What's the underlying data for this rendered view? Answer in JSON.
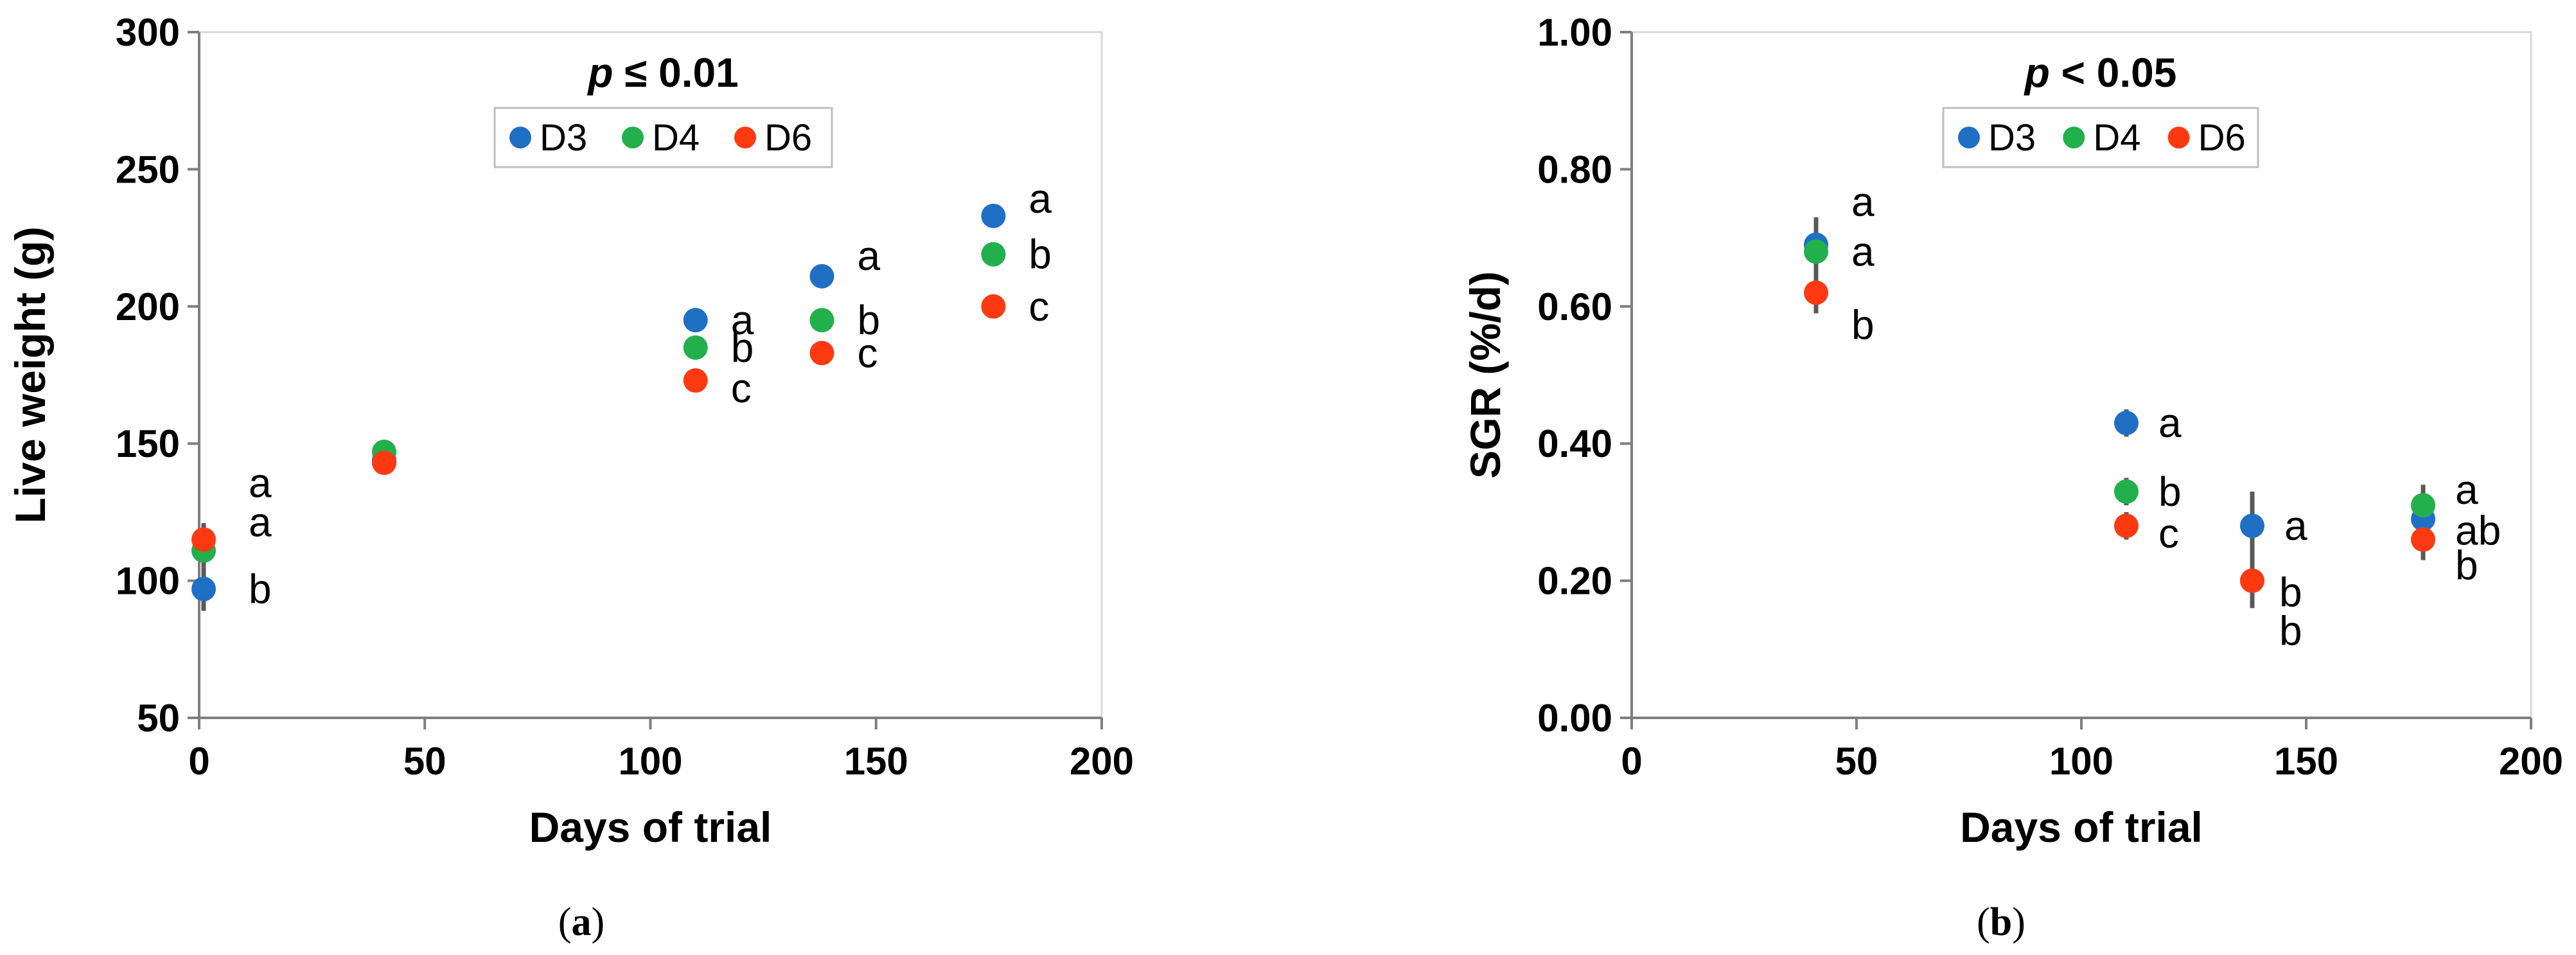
{
  "chart_data": [
    {
      "type": "scatter",
      "panel": "a",
      "caption_letter": "a",
      "p_label": "p ≤ 0.01",
      "p_symbol": "p",
      "p_rest": " ≤ 0.01",
      "xlabel": "Days of trial",
      "ylabel": "Live weight (g)",
      "xlim": [
        0,
        200
      ],
      "ylim": [
        50,
        300
      ],
      "xticks": [
        0,
        50,
        100,
        150,
        200
      ],
      "yticks": [
        50,
        100,
        150,
        200,
        250,
        300
      ],
      "legend_placement": "top-center",
      "grid": false,
      "series": [
        {
          "name": "D3",
          "color": "#1F6FC5",
          "points": [
            {
              "x": 1,
              "y": 97,
              "err": 8,
              "label": "b"
            },
            {
              "x": 41,
              "y": 144,
              "err": 0,
              "label": ""
            },
            {
              "x": 110,
              "y": 195,
              "err": 0,
              "label": "a"
            },
            {
              "x": 138,
              "y": 211,
              "err": 0,
              "label": "a"
            },
            {
              "x": 176,
              "y": 233,
              "err": 4,
              "label": "a"
            }
          ]
        },
        {
          "name": "D4",
          "color": "#21B04B",
          "points": [
            {
              "x": 1,
              "y": 111,
              "err": 6,
              "label": "a"
            },
            {
              "x": 41,
              "y": 147,
              "err": 0,
              "label": ""
            },
            {
              "x": 110,
              "y": 185,
              "err": 0,
              "label": "b"
            },
            {
              "x": 138,
              "y": 195,
              "err": 0,
              "label": "b"
            },
            {
              "x": 176,
              "y": 219,
              "err": 4,
              "label": "b"
            }
          ]
        },
        {
          "name": "D6",
          "color": "#FF3A12",
          "points": [
            {
              "x": 1,
              "y": 115,
              "err": 6,
              "label": "a"
            },
            {
              "x": 41,
              "y": 143,
              "err": 0,
              "label": ""
            },
            {
              "x": 110,
              "y": 173,
              "err": 0,
              "label": "c"
            },
            {
              "x": 138,
              "y": 183,
              "err": 0,
              "label": "c"
            },
            {
              "x": 176,
              "y": 200,
              "err": 0,
              "label": "c"
            }
          ]
        }
      ]
    },
    {
      "type": "scatter",
      "panel": "b",
      "caption_letter": "b",
      "p_label": "p < 0.05",
      "p_symbol": "p",
      "p_rest": " < 0.05",
      "xlabel": "Days of trial",
      "ylabel": "SGR (%/d)",
      "xlim": [
        0,
        200
      ],
      "ylim": [
        0,
        1
      ],
      "xticks": [
        0,
        50,
        100,
        150,
        200
      ],
      "yticks": [
        "0.00",
        "0.20",
        "0.40",
        "0.60",
        "0.80",
        "1.00"
      ],
      "legend_placement": "top-center",
      "grid": false,
      "series": [
        {
          "name": "D3",
          "color": "#1F6FC5",
          "points": [
            {
              "x": 41,
              "y": 0.69,
              "err": 0.04,
              "label": "a"
            },
            {
              "x": 110,
              "y": 0.43,
              "err": 0.02,
              "label": "a"
            },
            {
              "x": 138,
              "y": 0.28,
              "err": 0.05,
              "label": "a"
            },
            {
              "x": 176,
              "y": 0.29,
              "err": 0.02,
              "label": "ab"
            }
          ]
        },
        {
          "name": "D4",
          "color": "#21B04B",
          "points": [
            {
              "x": 41,
              "y": 0.68,
              "err": 0.02,
              "label": "a"
            },
            {
              "x": 110,
              "y": 0.33,
              "err": 0.02,
              "label": "b"
            },
            {
              "x": 138,
              "y": 0.2,
              "err": 0.02,
              "label": "b"
            },
            {
              "x": 176,
              "y": 0.31,
              "err": 0.03,
              "label": "a"
            }
          ]
        },
        {
          "name": "D6",
          "color": "#FF3A12",
          "points": [
            {
              "x": 41,
              "y": 0.62,
              "err": 0.03,
              "label": "b"
            },
            {
              "x": 110,
              "y": 0.28,
              "err": 0.02,
              "label": "c"
            },
            {
              "x": 138,
              "y": 0.2,
              "err": 0.04,
              "label": "b"
            },
            {
              "x": 176,
              "y": 0.26,
              "err": 0.03,
              "label": "b"
            }
          ]
        }
      ]
    }
  ]
}
